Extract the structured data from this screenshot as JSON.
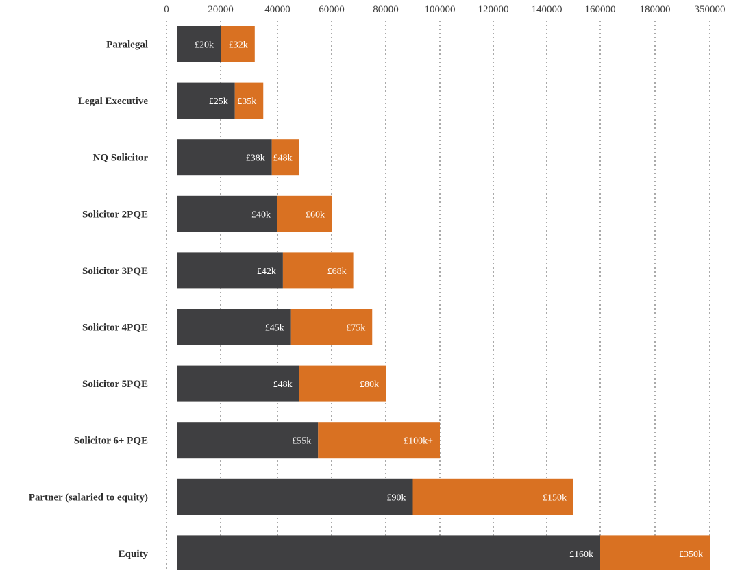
{
  "chart_data": {
    "type": "bar",
    "orientation": "horizontal",
    "stacked": true,
    "x_tick_labels": [
      "0",
      "20000",
      "40000",
      "60000",
      "80000",
      "100000",
      "120000",
      "140000",
      "160000",
      "180000",
      "350000"
    ],
    "categories": [
      "Paralegal",
      "Legal Executive",
      "NQ Solicitor",
      "Solicitor 2PQE",
      "Solicitor 3PQE",
      "Solicitor 4PQE",
      "Solicitor 5PQE",
      "Solicitor 6+ PQE",
      "Partner (salaried to equity)",
      "Equity"
    ],
    "series": [
      {
        "color": "#3f3f41",
        "values": [
          20000,
          25000,
          38000,
          40000,
          42000,
          45000,
          48000,
          55000,
          90000,
          160000
        ],
        "labels": [
          "£20k",
          "£25k",
          "£38k",
          "£40k",
          "£42k",
          "£45k",
          "£48k",
          "£55k",
          "£90k",
          "£160k"
        ]
      },
      {
        "color": "#d97122",
        "values": [
          32000,
          35000,
          48000,
          60000,
          68000,
          75000,
          80000,
          100000,
          150000,
          350000
        ],
        "labels": [
          "£32k",
          "£35k",
          "£48k",
          "£60k",
          "£68k",
          "£75k",
          "£80k",
          "£100k+",
          "£150k",
          "£350k"
        ]
      }
    ],
    "grid": "vertical-dotted",
    "legend": "none"
  }
}
